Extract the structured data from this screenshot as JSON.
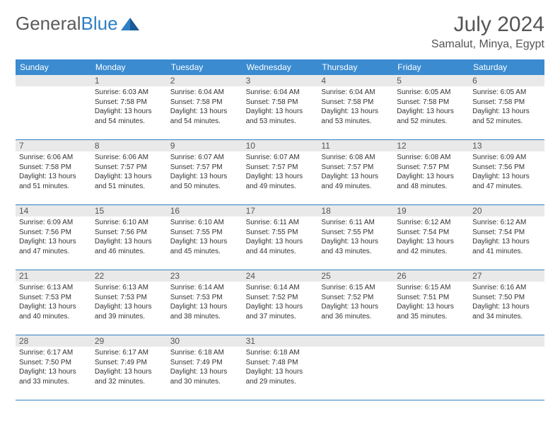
{
  "logo": {
    "part1": "General",
    "part2": "Blue"
  },
  "header": {
    "month_title": "July 2024",
    "location": "Samalut, Minya, Egypt"
  },
  "colors": {
    "header_bg": "#3a8bd0",
    "header_text": "#ffffff",
    "border": "#2f7fc4",
    "daynum_bg": "#e9e9e9",
    "text": "#333333",
    "logo_gray": "#5a5a5a",
    "logo_blue": "#2f7fc4",
    "background": "#ffffff"
  },
  "weekdays": [
    "Sunday",
    "Monday",
    "Tuesday",
    "Wednesday",
    "Thursday",
    "Friday",
    "Saturday"
  ],
  "start_offset": 1,
  "days": [
    {
      "n": 1,
      "sunrise": "6:03 AM",
      "sunset": "7:58 PM",
      "dl_h": 13,
      "dl_m": 54
    },
    {
      "n": 2,
      "sunrise": "6:04 AM",
      "sunset": "7:58 PM",
      "dl_h": 13,
      "dl_m": 54
    },
    {
      "n": 3,
      "sunrise": "6:04 AM",
      "sunset": "7:58 PM",
      "dl_h": 13,
      "dl_m": 53
    },
    {
      "n": 4,
      "sunrise": "6:04 AM",
      "sunset": "7:58 PM",
      "dl_h": 13,
      "dl_m": 53
    },
    {
      "n": 5,
      "sunrise": "6:05 AM",
      "sunset": "7:58 PM",
      "dl_h": 13,
      "dl_m": 52
    },
    {
      "n": 6,
      "sunrise": "6:05 AM",
      "sunset": "7:58 PM",
      "dl_h": 13,
      "dl_m": 52
    },
    {
      "n": 7,
      "sunrise": "6:06 AM",
      "sunset": "7:58 PM",
      "dl_h": 13,
      "dl_m": 51
    },
    {
      "n": 8,
      "sunrise": "6:06 AM",
      "sunset": "7:57 PM",
      "dl_h": 13,
      "dl_m": 51
    },
    {
      "n": 9,
      "sunrise": "6:07 AM",
      "sunset": "7:57 PM",
      "dl_h": 13,
      "dl_m": 50
    },
    {
      "n": 10,
      "sunrise": "6:07 AM",
      "sunset": "7:57 PM",
      "dl_h": 13,
      "dl_m": 49
    },
    {
      "n": 11,
      "sunrise": "6:08 AM",
      "sunset": "7:57 PM",
      "dl_h": 13,
      "dl_m": 49
    },
    {
      "n": 12,
      "sunrise": "6:08 AM",
      "sunset": "7:57 PM",
      "dl_h": 13,
      "dl_m": 48
    },
    {
      "n": 13,
      "sunrise": "6:09 AM",
      "sunset": "7:56 PM",
      "dl_h": 13,
      "dl_m": 47
    },
    {
      "n": 14,
      "sunrise": "6:09 AM",
      "sunset": "7:56 PM",
      "dl_h": 13,
      "dl_m": 47
    },
    {
      "n": 15,
      "sunrise": "6:10 AM",
      "sunset": "7:56 PM",
      "dl_h": 13,
      "dl_m": 46
    },
    {
      "n": 16,
      "sunrise": "6:10 AM",
      "sunset": "7:55 PM",
      "dl_h": 13,
      "dl_m": 45
    },
    {
      "n": 17,
      "sunrise": "6:11 AM",
      "sunset": "7:55 PM",
      "dl_h": 13,
      "dl_m": 44
    },
    {
      "n": 18,
      "sunrise": "6:11 AM",
      "sunset": "7:55 PM",
      "dl_h": 13,
      "dl_m": 43
    },
    {
      "n": 19,
      "sunrise": "6:12 AM",
      "sunset": "7:54 PM",
      "dl_h": 13,
      "dl_m": 42
    },
    {
      "n": 20,
      "sunrise": "6:12 AM",
      "sunset": "7:54 PM",
      "dl_h": 13,
      "dl_m": 41
    },
    {
      "n": 21,
      "sunrise": "6:13 AM",
      "sunset": "7:53 PM",
      "dl_h": 13,
      "dl_m": 40
    },
    {
      "n": 22,
      "sunrise": "6:13 AM",
      "sunset": "7:53 PM",
      "dl_h": 13,
      "dl_m": 39
    },
    {
      "n": 23,
      "sunrise": "6:14 AM",
      "sunset": "7:53 PM",
      "dl_h": 13,
      "dl_m": 38
    },
    {
      "n": 24,
      "sunrise": "6:14 AM",
      "sunset": "7:52 PM",
      "dl_h": 13,
      "dl_m": 37
    },
    {
      "n": 25,
      "sunrise": "6:15 AM",
      "sunset": "7:52 PM",
      "dl_h": 13,
      "dl_m": 36
    },
    {
      "n": 26,
      "sunrise": "6:15 AM",
      "sunset": "7:51 PM",
      "dl_h": 13,
      "dl_m": 35
    },
    {
      "n": 27,
      "sunrise": "6:16 AM",
      "sunset": "7:50 PM",
      "dl_h": 13,
      "dl_m": 34
    },
    {
      "n": 28,
      "sunrise": "6:17 AM",
      "sunset": "7:50 PM",
      "dl_h": 13,
      "dl_m": 33
    },
    {
      "n": 29,
      "sunrise": "6:17 AM",
      "sunset": "7:49 PM",
      "dl_h": 13,
      "dl_m": 32
    },
    {
      "n": 30,
      "sunrise": "6:18 AM",
      "sunset": "7:49 PM",
      "dl_h": 13,
      "dl_m": 30
    },
    {
      "n": 31,
      "sunrise": "6:18 AM",
      "sunset": "7:48 PM",
      "dl_h": 13,
      "dl_m": 29
    }
  ],
  "labels": {
    "sunrise": "Sunrise:",
    "sunset": "Sunset:",
    "daylight": "Daylight:",
    "hours": "hours",
    "and": "and",
    "minutes": "minutes."
  }
}
